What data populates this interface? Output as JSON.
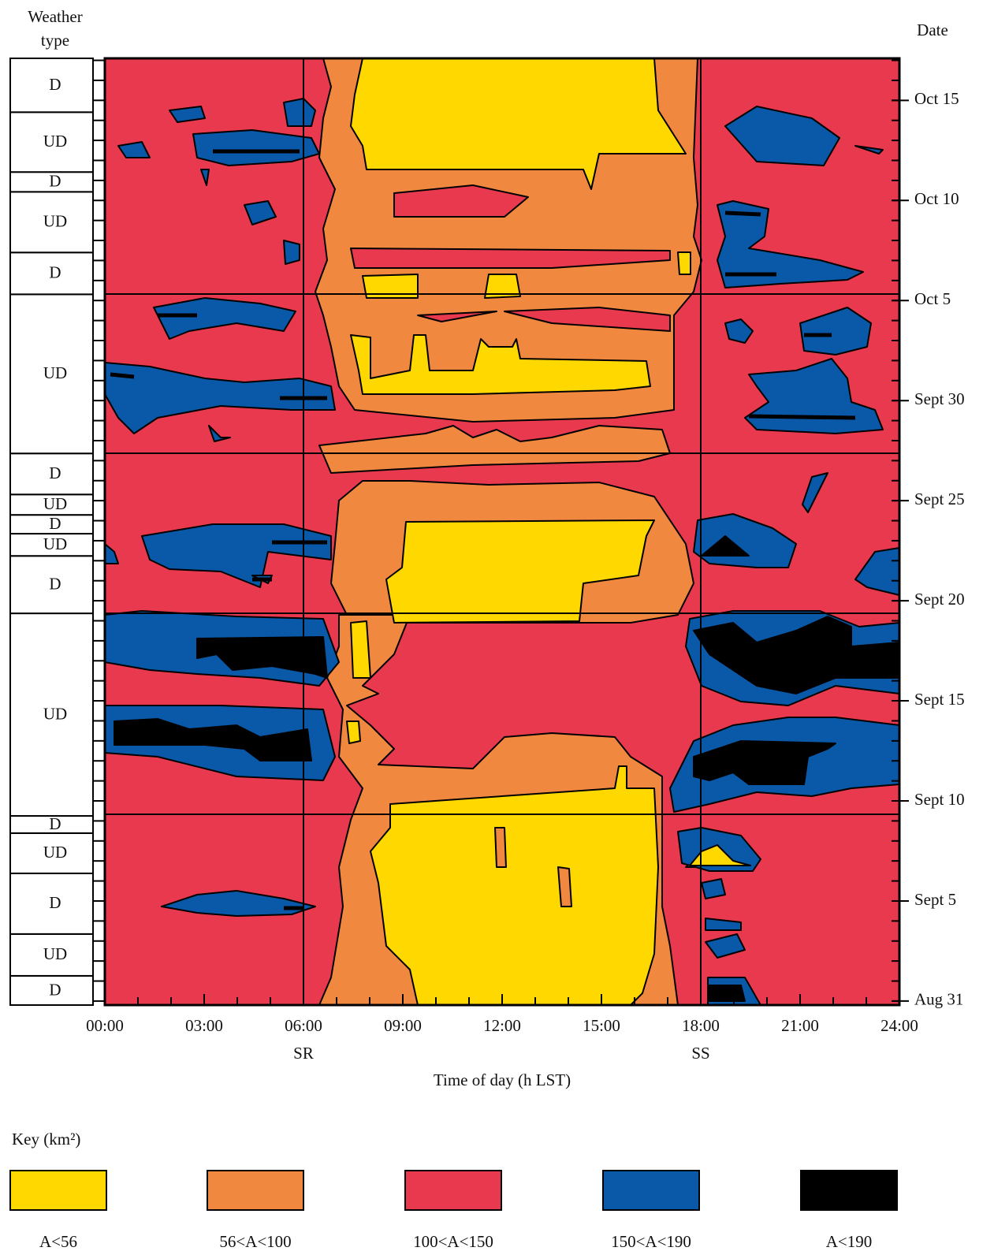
{
  "chart_data": {
    "type": "contour",
    "x_label": "Time of day (h LST)",
    "y_label": "Date",
    "weather_label": "Weather type",
    "xlim": [
      0,
      24
    ],
    "xticks": [
      {
        "value": 0,
        "label": "00:00"
      },
      {
        "value": 3,
        "label": "03:00"
      },
      {
        "value": 6,
        "label": "06:00"
      },
      {
        "value": 9,
        "label": "09:00"
      },
      {
        "value": 12,
        "label": "12:00"
      },
      {
        "value": 15,
        "label": "15:00"
      },
      {
        "value": 18,
        "label": "18:00"
      },
      {
        "value": 21,
        "label": "21:00"
      },
      {
        "value": 24,
        "label": "24:00"
      }
    ],
    "ylim": [
      -0.2,
      47.1
    ],
    "yticks": [
      {
        "value": 0,
        "label": "Aug 31"
      },
      {
        "value": 5,
        "label": "Sept 5"
      },
      {
        "value": 10,
        "label": "Sept 10"
      },
      {
        "value": 15,
        "label": "Sept 15"
      },
      {
        "value": 20,
        "label": "Sept 20"
      },
      {
        "value": 25,
        "label": "Sept 25"
      },
      {
        "value": 30,
        "label": "Sept 30"
      },
      {
        "value": 35,
        "label": "Oct 5"
      },
      {
        "value": 40,
        "label": "Oct 10"
      },
      {
        "value": 45,
        "label": "Oct 15"
      }
    ],
    "annotations": [
      {
        "x": 6,
        "text": "SR"
      },
      {
        "x": 18,
        "text": "SS"
      }
    ],
    "weather_type": {
      "labels": [
        "D",
        "UD",
        "D",
        "UD",
        "D",
        "UD",
        "D",
        "UD",
        "D",
        "UD",
        "D",
        "UD",
        "D",
        "UD",
        "D",
        "UD",
        "D"
      ],
      "bounds": [
        -0.2,
        1.26,
        3.35,
        6.38,
        8.39,
        9.25,
        19.37,
        22.24,
        23.35,
        24.29,
        25.31,
        27.36,
        35.31,
        37.4,
        40.43,
        41.42,
        44.41,
        47.1
      ]
    },
    "legend": {
      "title": "Key (km²)",
      "items": [
        {
          "label": "A<56",
          "color": "#ffd800"
        },
        {
          "label": "56<A<100",
          "color": "#f08840"
        },
        {
          "label": "100<A<150",
          "color": "#e8394f"
        },
        {
          "label": "150<A<190",
          "color": "#0a58a8"
        },
        {
          "label": "A<190",
          "color": "#000000"
        }
      ]
    }
  }
}
